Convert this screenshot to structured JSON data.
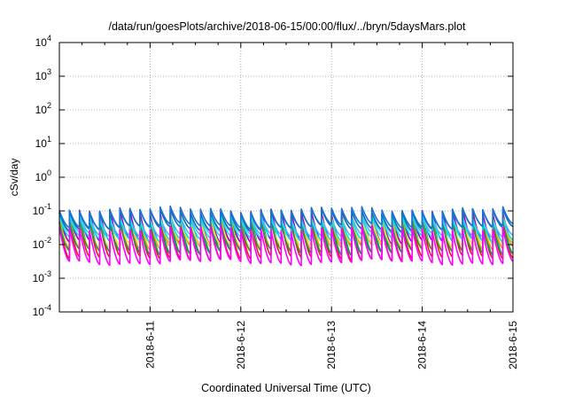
{
  "chart_data": {
    "type": "line",
    "title": "/data/run/goesPlots/archive/2018-06-15/00:00/flux/../bryn/5daysMars.plot",
    "xlabel": "Coordinated Universal Time (UTC)",
    "ylabel": "cSv/day",
    "yscale": "log",
    "ylim": [
      0.0001,
      10000
    ],
    "y_ticks": [
      {
        "base": "10",
        "exp": "-4"
      },
      {
        "base": "10",
        "exp": "-3"
      },
      {
        "base": "10",
        "exp": "-2"
      },
      {
        "base": "10",
        "exp": "-1"
      },
      {
        "base": "10",
        "exp": "0"
      },
      {
        "base": "10",
        "exp": "1"
      },
      {
        "base": "10",
        "exp": "2"
      },
      {
        "base": "10",
        "exp": "3"
      },
      {
        "base": "10",
        "exp": "4"
      }
    ],
    "xlim": [
      "2018-06-10",
      "2018-06-15"
    ],
    "x_ticks": [
      "2018-6-11",
      "2018-6-12",
      "2018-6-13",
      "2018-6-14",
      "2018-6-15"
    ],
    "grid": true,
    "pattern": {
      "description_period_hours": 2.6,
      "peaks_per_day": 9
    },
    "series": [
      {
        "color": "#9400d3",
        "upper": 0.09,
        "lower": 0.012
      },
      {
        "color": "#009e73",
        "upper": 0.08,
        "lower": 0.006
      },
      {
        "color": "#56b4e9",
        "upper": 0.07,
        "lower": 0.02
      },
      {
        "color": "#e69f00",
        "upper": 0.06,
        "lower": 0.008
      },
      {
        "color": "#f0e442",
        "upper": 0.05,
        "lower": 0.01
      },
      {
        "color": "#0072b2",
        "upper": 0.1,
        "lower": 0.03
      },
      {
        "color": "#e51e10",
        "upper": 0.05,
        "lower": 0.004
      },
      {
        "color": "#2e8b57",
        "upper": 0.04,
        "lower": 0.006
      },
      {
        "color": "#00e5ee",
        "upper": 0.06,
        "lower": 0.015
      },
      {
        "color": "#ff00ff",
        "upper": 0.03,
        "lower": 0.003
      },
      {
        "color": "#1f6fd6",
        "upper": 0.11,
        "lower": 0.035
      }
    ]
  }
}
